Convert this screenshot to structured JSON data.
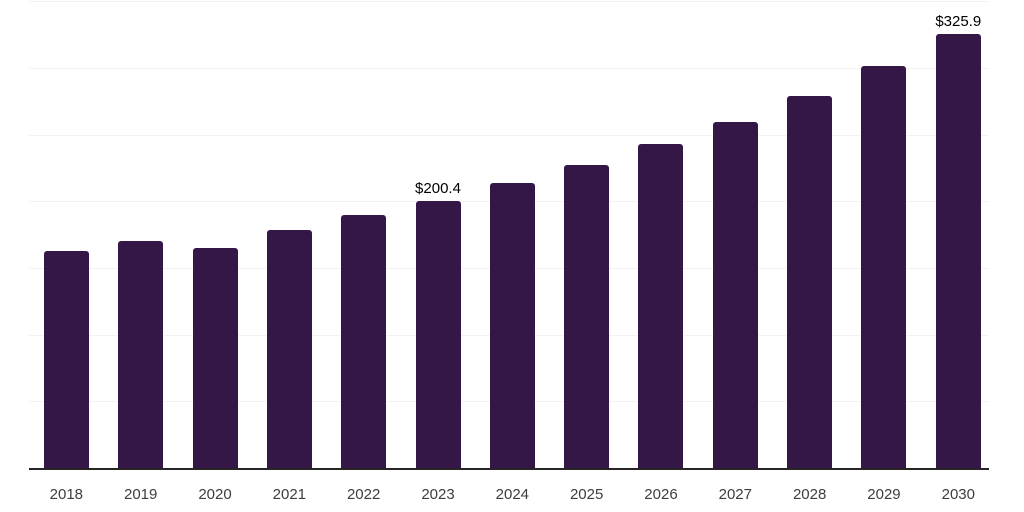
{
  "chart_data": {
    "type": "bar",
    "title": "",
    "xlabel": "",
    "ylabel": "",
    "categories": [
      "2018",
      "2019",
      "2020",
      "2021",
      "2022",
      "2023",
      "2024",
      "2025",
      "2026",
      "2027",
      "2028",
      "2029",
      "2030"
    ],
    "values": [
      163.0,
      170.7,
      165.6,
      179.0,
      190.1,
      200.4,
      213.9,
      227.6,
      243.4,
      260.1,
      279.3,
      302.0,
      325.9
    ],
    "data_labels": [
      {
        "category": "2023",
        "text": "$200.4"
      },
      {
        "category": "2030",
        "text": "$325.9"
      }
    ],
    "ylim": [
      0,
      350
    ],
    "gridline_step": 50,
    "grid": "horizontal-only",
    "legend_position": "none",
    "y_axis_tick_labels_visible": false,
    "colors": {
      "bar": "#341747",
      "background": "#ffffff",
      "gridline": "#f2f2f2",
      "axis_line": "#262626",
      "tick_label": "#3d3d3d",
      "data_label": "#000000"
    }
  }
}
